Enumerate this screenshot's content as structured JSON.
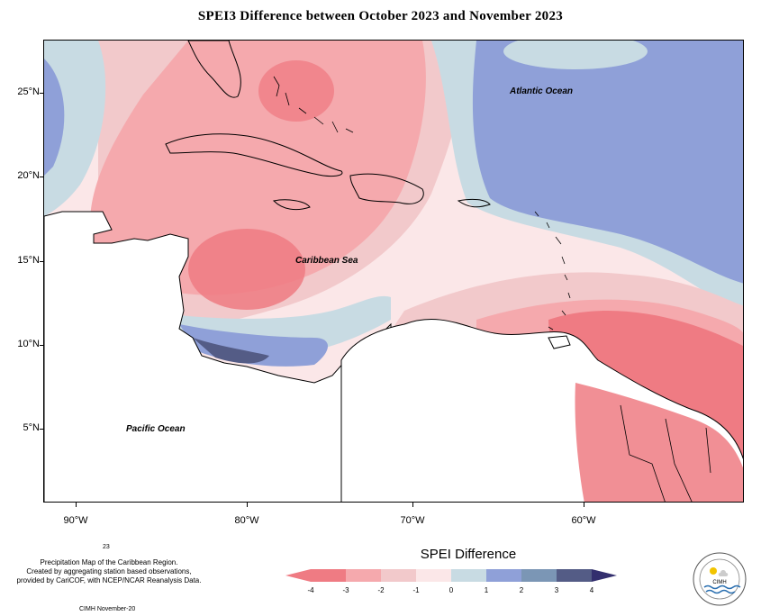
{
  "title": "SPEI3 Difference between October 2023 and November 2023",
  "latitude_labels": [
    "25°N",
    "20°N",
    "15°N",
    "10°N",
    "5°N"
  ],
  "longitude_labels": [
    "90°W",
    "80°W",
    "70°W",
    "60°W"
  ],
  "regions": {
    "atlantic": "Atlantic Ocean",
    "caribbean": "Caribbean Sea",
    "pacific": "Pacific Ocean"
  },
  "notes": {
    "line1": "Precipitation Map of the Caribbean Region.",
    "line2": "Created by aggregating station based observations,",
    "line3": "provided by CariCOF, with NCEP/NCAR Reanalysis Data.",
    "superscript": "23",
    "credit": "CIMH November-20"
  },
  "legend": {
    "title": "SPEI Difference",
    "ticks": [
      "-4",
      "-3",
      "-2",
      "-1",
      "0",
      "1",
      "2",
      "3",
      "4"
    ],
    "colors": [
      "#ef7b83",
      "#f5a9ad",
      "#f2c9cb",
      "#fbe7e8",
      "#c8dbe3",
      "#8fa0d8",
      "#7b96b5",
      "#545c86",
      "#332f6e"
    ]
  },
  "logo": {
    "text": "CIMH"
  }
}
